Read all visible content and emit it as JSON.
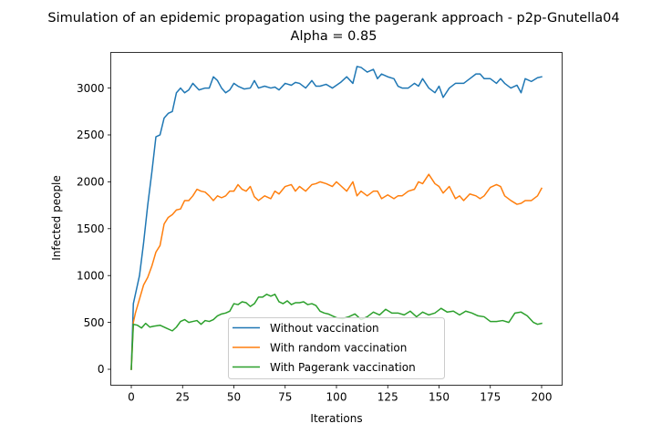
{
  "chart_data": {
    "type": "line",
    "title": "Simulation of an epidemic propagation using the pagerank approach - p2p-Gnutella04",
    "subtitle": "Alpha = 0.85",
    "xlabel": "Iterations",
    "ylabel": "Infected people",
    "xlim": [
      -10,
      210
    ],
    "ylim": [
      -170,
      3380
    ],
    "xticks": [
      0,
      25,
      50,
      75,
      100,
      125,
      150,
      175,
      200
    ],
    "yticks": [
      0,
      500,
      1000,
      1500,
      2000,
      2500,
      3000
    ],
    "grid": false,
    "legend_position": "lower-center",
    "series": [
      {
        "name": "Without vaccination",
        "color": "#1f77b4",
        "x": [
          0,
          1,
          2,
          4,
          6,
          8,
          10,
          12,
          14,
          16,
          18,
          20,
          22,
          24,
          26,
          28,
          30,
          33,
          36,
          38,
          40,
          42,
          44,
          46,
          48,
          50,
          52,
          55,
          58,
          60,
          62,
          65,
          68,
          70,
          72,
          75,
          78,
          80,
          82,
          85,
          88,
          90,
          92,
          95,
          98,
          100,
          102,
          105,
          108,
          110,
          112,
          115,
          118,
          120,
          122,
          125,
          128,
          130,
          132,
          135,
          138,
          140,
          142,
          145,
          148,
          150,
          152,
          155,
          158,
          160,
          162,
          165,
          168,
          170,
          172,
          175,
          178,
          180,
          182,
          185,
          188,
          190,
          192,
          195,
          198,
          200
        ],
        "values": [
          0,
          700,
          800,
          1000,
          1350,
          1750,
          2100,
          2480,
          2500,
          2680,
          2730,
          2750,
          2950,
          3000,
          2950,
          2980,
          3050,
          2980,
          3000,
          3000,
          3120,
          3080,
          3000,
          2950,
          2980,
          3050,
          3020,
          2990,
          3000,
          3080,
          3000,
          3020,
          3000,
          3010,
          2980,
          3050,
          3030,
          3060,
          3050,
          3000,
          3080,
          3020,
          3020,
          3040,
          3000,
          3030,
          3060,
          3120,
          3050,
          3230,
          3220,
          3170,
          3200,
          3100,
          3150,
          3120,
          3100,
          3020,
          3000,
          3000,
          3050,
          3020,
          3100,
          3000,
          2950,
          3020,
          2900,
          3000,
          3050,
          3050,
          3050,
          3100,
          3150,
          3150,
          3100,
          3100,
          3050,
          3100,
          3050,
          3000,
          3030,
          2950,
          3100,
          3070,
          3110,
          3120
        ]
      },
      {
        "name": "With random vaccination",
        "color": "#ff7f0e",
        "x": [
          0,
          1,
          2,
          4,
          6,
          8,
          10,
          12,
          14,
          16,
          18,
          20,
          22,
          24,
          26,
          28,
          30,
          32,
          34,
          36,
          38,
          40,
          42,
          44,
          46,
          48,
          50,
          52,
          54,
          56,
          58,
          60,
          62,
          65,
          68,
          70,
          72,
          75,
          78,
          80,
          82,
          85,
          88,
          90,
          92,
          95,
          98,
          100,
          102,
          105,
          108,
          110,
          112,
          115,
          118,
          120,
          122,
          125,
          128,
          130,
          132,
          135,
          138,
          140,
          142,
          145,
          148,
          150,
          152,
          155,
          158,
          160,
          162,
          165,
          168,
          170,
          172,
          175,
          178,
          180,
          182,
          185,
          188,
          190,
          192,
          195,
          198,
          200
        ],
        "values": [
          0,
          500,
          600,
          750,
          900,
          980,
          1100,
          1250,
          1320,
          1550,
          1620,
          1650,
          1700,
          1710,
          1800,
          1800,
          1850,
          1920,
          1900,
          1890,
          1850,
          1800,
          1850,
          1830,
          1850,
          1900,
          1900,
          1970,
          1920,
          1900,
          1950,
          1840,
          1800,
          1850,
          1820,
          1900,
          1870,
          1950,
          1970,
          1900,
          1950,
          1900,
          1970,
          1980,
          2000,
          1980,
          1950,
          2000,
          1960,
          1900,
          2000,
          1850,
          1900,
          1850,
          1900,
          1900,
          1820,
          1860,
          1820,
          1850,
          1850,
          1900,
          1920,
          2000,
          1980,
          2080,
          1980,
          1950,
          1880,
          1950,
          1820,
          1850,
          1800,
          1870,
          1850,
          1820,
          1850,
          1940,
          1970,
          1950,
          1850,
          1800,
          1760,
          1770,
          1800,
          1800,
          1850,
          1930
        ]
      },
      {
        "name": "With Pagerank vaccination",
        "color": "#2ca02c",
        "x": [
          0,
          1,
          3,
          5,
          7,
          9,
          11,
          14,
          17,
          20,
          22,
          24,
          26,
          28,
          30,
          32,
          34,
          36,
          38,
          40,
          42,
          44,
          46,
          48,
          50,
          52,
          54,
          56,
          58,
          60,
          62,
          64,
          66,
          68,
          70,
          72,
          74,
          76,
          78,
          80,
          82,
          84,
          86,
          88,
          90,
          92,
          94,
          96,
          98,
          100,
          103,
          106,
          109,
          112,
          115,
          118,
          121,
          124,
          127,
          130,
          133,
          136,
          139,
          142,
          145,
          148,
          151,
          154,
          157,
          160,
          163,
          166,
          169,
          172,
          175,
          178,
          181,
          184,
          187,
          190,
          193,
          196,
          198,
          200
        ],
        "values": [
          0,
          480,
          470,
          440,
          490,
          450,
          460,
          470,
          440,
          410,
          450,
          510,
          530,
          500,
          510,
          520,
          480,
          520,
          510,
          530,
          570,
          590,
          600,
          620,
          700,
          690,
          720,
          710,
          670,
          700,
          770,
          770,
          800,
          780,
          800,
          720,
          700,
          730,
          690,
          710,
          710,
          720,
          690,
          700,
          680,
          620,
          600,
          590,
          570,
          550,
          540,
          560,
          590,
          530,
          560,
          610,
          580,
          640,
          600,
          600,
          580,
          620,
          560,
          610,
          580,
          600,
          650,
          610,
          620,
          580,
          620,
          600,
          570,
          560,
          510,
          510,
          520,
          500,
          600,
          610,
          570,
          500,
          480,
          490
        ]
      }
    ]
  }
}
